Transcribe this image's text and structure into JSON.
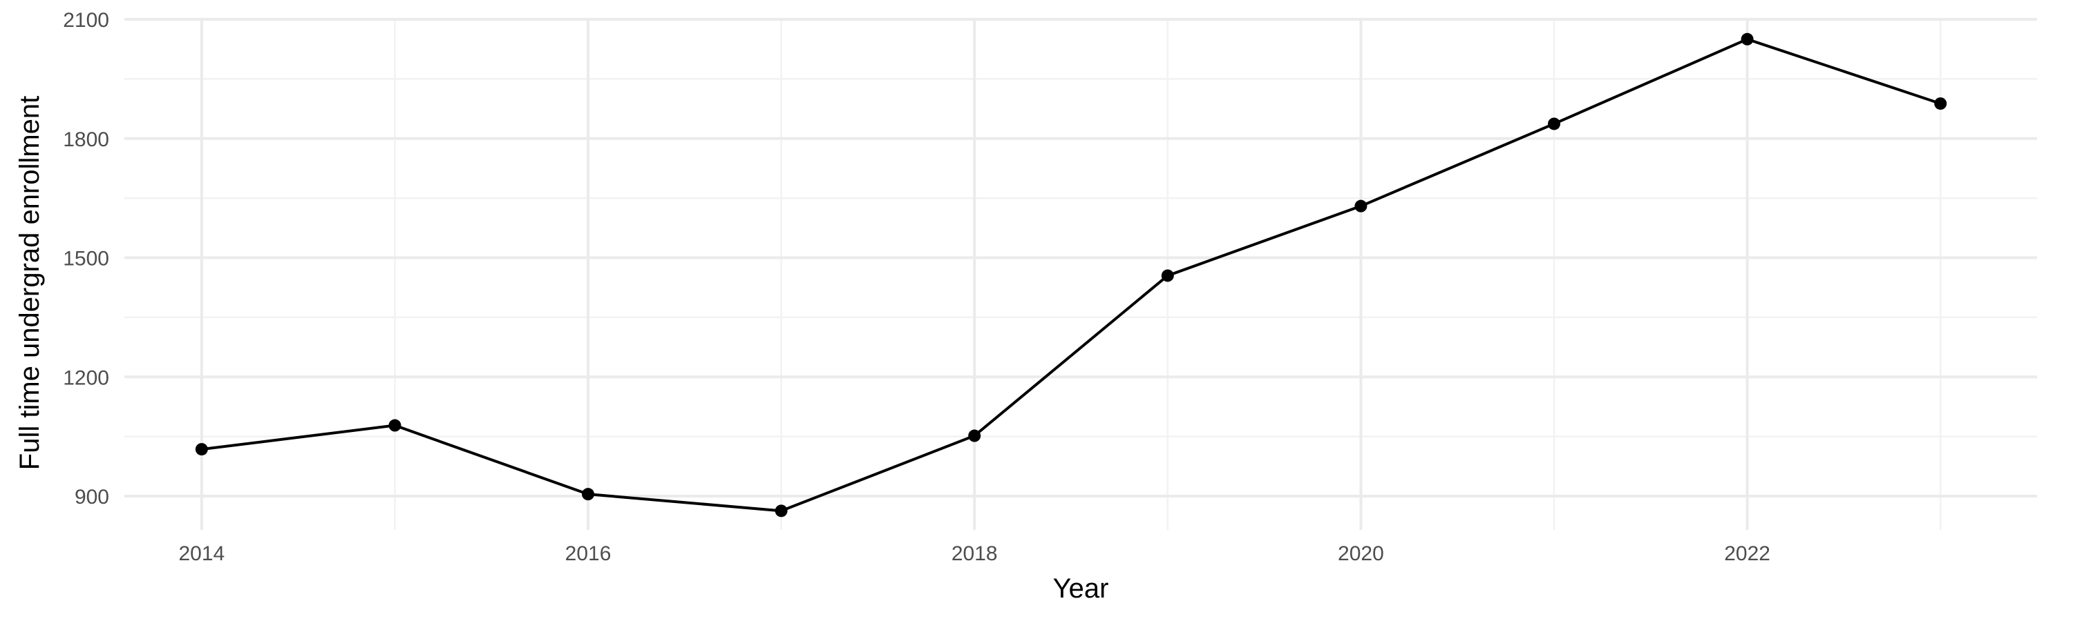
{
  "chart_data": {
    "type": "line",
    "title": "",
    "xlabel": "Year",
    "ylabel": "Full time undergrad enrollment",
    "x": [
      2014,
      2015,
      2016,
      2017,
      2018,
      2019,
      2020,
      2021,
      2022,
      2023
    ],
    "series": [
      {
        "values": [
          1018,
          1078,
          905,
          863,
          1052,
          1455,
          1630,
          1837,
          2050,
          1888
        ]
      }
    ],
    "xlim": [
      2013.6,
      2023.5
    ],
    "ylim": [
      815,
      2100
    ],
    "xticks": [
      2014,
      2016,
      2018,
      2020,
      2022
    ],
    "yticks": [
      900,
      1200,
      1500,
      1800,
      2100
    ],
    "xtick_labels": [
      "2014",
      "2016",
      "2018",
      "2020",
      "2022"
    ],
    "ytick_labels": [
      "900",
      "1200",
      "1500",
      "1800",
      "2100"
    ],
    "grid": true,
    "legend": "none",
    "colors": {
      "line": "#000000",
      "point": "#000000",
      "grid_major": "#ebebeb",
      "grid_minor": "#f2f2f2",
      "tick_text": "#4d4d4d",
      "axis_title": "#000000",
      "background": "#ffffff"
    }
  }
}
